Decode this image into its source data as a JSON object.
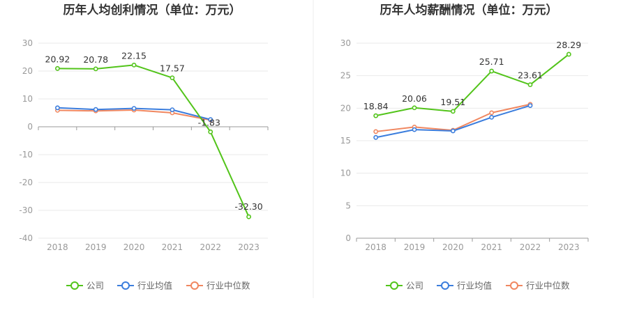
{
  "colors": {
    "company": "#52c41a",
    "industry_avg": "#3b7ddd",
    "industry_median": "#f08760",
    "grid": "#e9e9e9",
    "axis": "#9a9a9a",
    "divider": "#eeeeee"
  },
  "legend": [
    "公司",
    "行业均值",
    "行业中位数"
  ],
  "chart_data": [
    {
      "type": "line",
      "title": "历年人均创利情况（单位：万元）",
      "categories": [
        "2018",
        "2019",
        "2020",
        "2021",
        "2022",
        "2023"
      ],
      "ylim": [
        -40,
        30
      ],
      "yticks": [
        30,
        20,
        10,
        0,
        -10,
        -20,
        -30,
        -40
      ],
      "series": [
        {
          "name": "公司",
          "values": [
            20.92,
            20.78,
            22.15,
            17.57,
            -1.83,
            -32.3
          ],
          "labels": [
            "20.92",
            "20.78",
            "22.15",
            "17.57",
            "-1.83",
            "-32.30"
          ]
        },
        {
          "name": "行业均值",
          "values": [
            6.8,
            6.2,
            6.6,
            6.1,
            2.6,
            null
          ]
        },
        {
          "name": "行业中位数",
          "values": [
            5.9,
            5.7,
            6.0,
            5.0,
            2.4,
            null
          ]
        }
      ]
    },
    {
      "type": "line",
      "title": "历年人均薪酬情况（单位：万元）",
      "categories": [
        "2018",
        "2019",
        "2020",
        "2021",
        "2022",
        "2023"
      ],
      "ylim": [
        0,
        30
      ],
      "yticks": [
        30,
        25,
        20,
        15,
        10,
        5,
        0
      ],
      "series": [
        {
          "name": "公司",
          "values": [
            18.84,
            20.06,
            19.51,
            25.71,
            23.61,
            28.29
          ],
          "labels": [
            "18.84",
            "20.06",
            "19.51",
            "25.71",
            "23.61",
            "28.29"
          ]
        },
        {
          "name": "行业均值",
          "values": [
            15.5,
            16.7,
            16.5,
            18.6,
            20.4,
            null
          ]
        },
        {
          "name": "行业中位数",
          "values": [
            16.4,
            17.1,
            16.6,
            19.3,
            20.6,
            null
          ]
        }
      ]
    }
  ]
}
